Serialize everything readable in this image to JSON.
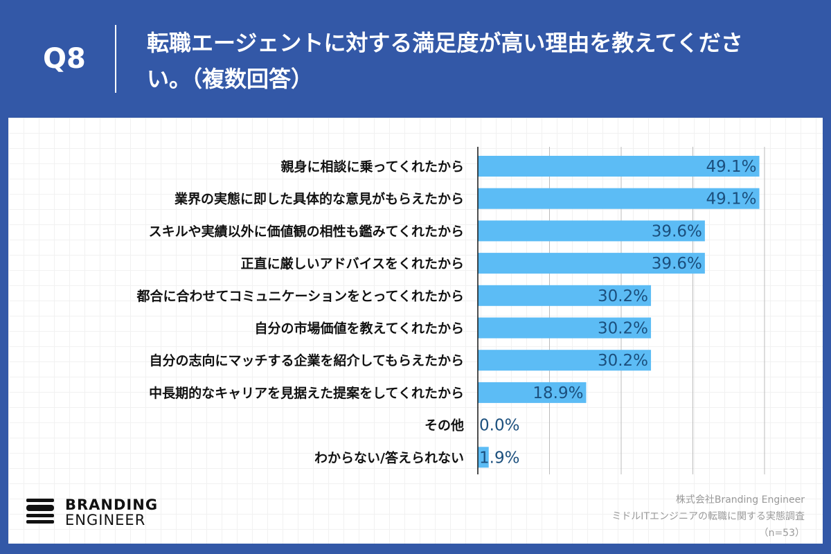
{
  "header": {
    "question": "Q8",
    "title": "転職エージェントに対する満足度が高い理由を教えてください。（複数回答）"
  },
  "colors": {
    "background": "#3358a7",
    "bar": "#5cbcf5",
    "value_text": "#1b4f7d"
  },
  "chart_data": {
    "type": "bar",
    "orientation": "horizontal",
    "categories": [
      "親身に相談に乗ってくれたから",
      "業界の実態に即した具体的な意見がもらえたから",
      "スキルや実績以外に価値観の相性も鑑みてくれたから",
      "正直に厳しいアドバイスをくれたから",
      "都合に合わせてコミュニケーションをとってくれたから",
      "自分の市場価値を教えてくれたから",
      "自分の志向にマッチする企業を紹介してもらえたから",
      "中長期的なキャリアを見据えた提案をしてくれたから",
      "その他",
      "わからない/答えられない"
    ],
    "values": [
      49.1,
      49.1,
      39.6,
      39.6,
      30.2,
      30.2,
      30.2,
      18.9,
      0.0,
      1.9
    ],
    "value_labels": [
      "49.1%",
      "49.1%",
      "39.6%",
      "39.6%",
      "30.2%",
      "30.2%",
      "30.2%",
      "18.9%",
      "0.0%",
      "1.9%"
    ],
    "xlim": [
      0,
      50
    ],
    "grid": true,
    "grid_step": 12.5
  },
  "logo": {
    "line1": "BRANDING",
    "line2": "ENGINEER"
  },
  "source": {
    "company": "株式会社Branding Engineer",
    "survey": "ミドルITエンジニアの転職に関する実態調査",
    "n": "（n=53）"
  }
}
